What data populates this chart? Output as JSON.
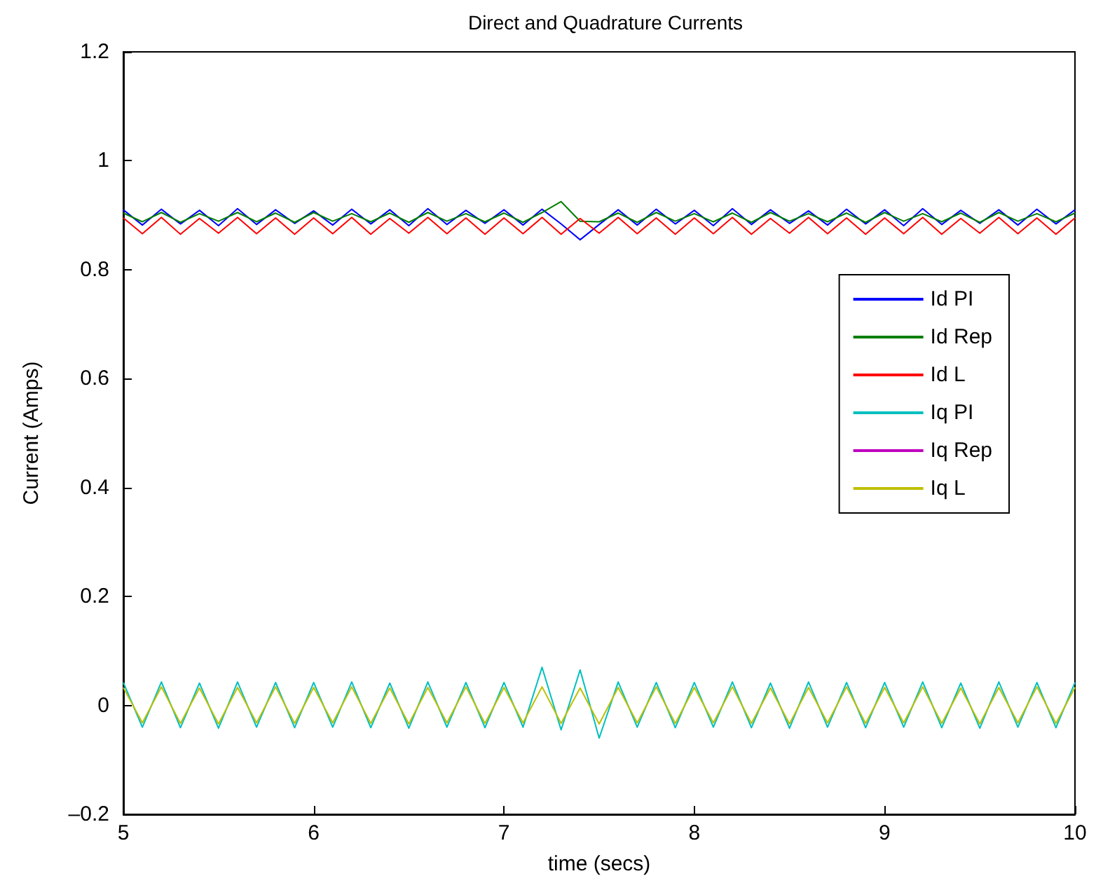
{
  "chart_data": {
    "type": "line",
    "title": "Direct and Quadrature Currents",
    "xlabel": "time (secs)",
    "ylabel": "Current (Amps)",
    "x": [
      5,
      5.1,
      5.2,
      5.3,
      5.4,
      5.5,
      5.6,
      5.7,
      5.8,
      5.9,
      6,
      6.1,
      6.2,
      6.3,
      6.4,
      6.5,
      6.6,
      6.7,
      6.8,
      6.9,
      7,
      7.1,
      7.2,
      7.3,
      7.4,
      7.5,
      7.6,
      7.7,
      7.8,
      7.9,
      8,
      8.1,
      8.2,
      8.3,
      8.4,
      8.5,
      8.6,
      8.7,
      8.8,
      8.9,
      9,
      9.1,
      9.2,
      9.3,
      9.4,
      9.5,
      9.6,
      9.7,
      9.8,
      9.9,
      10
    ],
    "series": [
      {
        "name": "Id PI",
        "color": "#0000ff",
        "values": [
          0.91,
          0.882,
          0.911,
          0.884,
          0.909,
          0.881,
          0.912,
          0.883,
          0.91,
          0.885,
          0.908,
          0.882,
          0.911,
          0.884,
          0.91,
          0.881,
          0.912,
          0.883,
          0.909,
          0.885,
          0.91,
          0.882,
          0.911,
          0.884,
          0.855,
          0.883,
          0.91,
          0.882,
          0.911,
          0.884,
          0.909,
          0.881,
          0.912,
          0.883,
          0.91,
          0.885,
          0.908,
          0.882,
          0.911,
          0.884,
          0.91,
          0.881,
          0.912,
          0.883,
          0.909,
          0.885,
          0.91,
          0.882,
          0.911,
          0.884,
          0.91
        ]
      },
      {
        "name": "Id Rep",
        "color": "#007f00",
        "values": [
          0.904,
          0.888,
          0.905,
          0.887,
          0.903,
          0.889,
          0.905,
          0.888,
          0.904,
          0.887,
          0.905,
          0.889,
          0.903,
          0.888,
          0.904,
          0.887,
          0.905,
          0.889,
          0.903,
          0.888,
          0.904,
          0.887,
          0.905,
          0.925,
          0.889,
          0.888,
          0.904,
          0.887,
          0.905,
          0.889,
          0.903,
          0.888,
          0.904,
          0.887,
          0.905,
          0.889,
          0.903,
          0.888,
          0.904,
          0.887,
          0.905,
          0.889,
          0.903,
          0.888,
          0.904,
          0.887,
          0.905,
          0.889,
          0.903,
          0.888,
          0.904
        ]
      },
      {
        "name": "Id L",
        "color": "#ff0000",
        "values": [
          0.895,
          0.866,
          0.896,
          0.865,
          0.894,
          0.867,
          0.896,
          0.866,
          0.895,
          0.865,
          0.895,
          0.866,
          0.896,
          0.865,
          0.894,
          0.867,
          0.896,
          0.866,
          0.895,
          0.865,
          0.895,
          0.866,
          0.896,
          0.865,
          0.894,
          0.867,
          0.896,
          0.866,
          0.895,
          0.865,
          0.895,
          0.866,
          0.896,
          0.865,
          0.894,
          0.867,
          0.896,
          0.866,
          0.895,
          0.865,
          0.895,
          0.866,
          0.896,
          0.865,
          0.894,
          0.867,
          0.896,
          0.866,
          0.895,
          0.865,
          0.895
        ]
      },
      {
        "name": "Iq PI",
        "color": "#00bfbf",
        "values": [
          0.042,
          -0.04,
          0.043,
          -0.041,
          0.041,
          -0.042,
          0.043,
          -0.04,
          0.042,
          -0.041,
          0.042,
          -0.04,
          0.043,
          -0.041,
          0.041,
          -0.042,
          0.043,
          -0.04,
          0.042,
          -0.041,
          0.042,
          -0.04,
          0.07,
          -0.045,
          0.065,
          -0.06,
          0.043,
          -0.04,
          0.042,
          -0.041,
          0.042,
          -0.04,
          0.043,
          -0.041,
          0.041,
          -0.042,
          0.043,
          -0.04,
          0.042,
          -0.041,
          0.042,
          -0.04,
          0.043,
          -0.041,
          0.041,
          -0.042,
          0.043,
          -0.04,
          0.042,
          -0.041,
          0.042
        ]
      },
      {
        "name": "Iq Rep",
        "color": "#bf00bf",
        "values": [
          null,
          null,
          null,
          null,
          null,
          null,
          null,
          null,
          null,
          null,
          null,
          null,
          null,
          null,
          null,
          null,
          null,
          null,
          null,
          null,
          null,
          null,
          null,
          null,
          null,
          null,
          null,
          null,
          null,
          null,
          null,
          null,
          null,
          null,
          null,
          null,
          null,
          null,
          null,
          null,
          null,
          null,
          null,
          null,
          null,
          null,
          null,
          null,
          null,
          null,
          null
        ]
      },
      {
        "name": "Iq L",
        "color": "#bfbf00",
        "values": [
          0.033,
          -0.032,
          0.034,
          -0.033,
          0.032,
          -0.034,
          0.033,
          -0.032,
          0.034,
          -0.033,
          0.033,
          -0.032,
          0.034,
          -0.033,
          0.032,
          -0.034,
          0.033,
          -0.032,
          0.034,
          -0.033,
          0.033,
          -0.032,
          0.034,
          -0.033,
          0.032,
          -0.034,
          0.033,
          -0.032,
          0.034,
          -0.033,
          0.033,
          -0.032,
          0.034,
          -0.033,
          0.032,
          -0.034,
          0.033,
          -0.032,
          0.034,
          -0.033,
          0.033,
          -0.032,
          0.034,
          -0.033,
          0.032,
          -0.034,
          0.033,
          -0.032,
          0.034,
          -0.033,
          0.033
        ]
      }
    ],
    "xlim": [
      5,
      10
    ],
    "xticks": [
      5,
      6,
      7,
      8,
      9,
      10
    ],
    "ylim": [
      -0.2,
      1.2
    ],
    "yticks": [
      {
        "value": -0.2,
        "label": "–0.2"
      },
      0,
      0.2,
      0.4,
      0.6,
      0.8,
      1,
      1.2
    ],
    "grid": false,
    "legend": "right",
    "marker": "none",
    "line_style": "solid"
  }
}
